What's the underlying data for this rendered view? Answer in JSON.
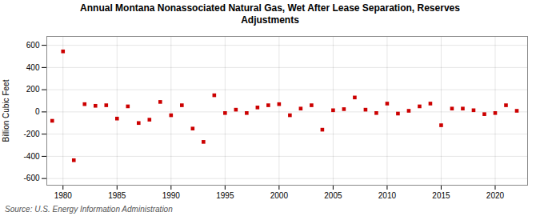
{
  "chart_data": {
    "type": "scatter",
    "title": "Annual Montana Nonassociated Natural Gas, Wet After Lease Separation, Reserves\nAdjustments",
    "ylabel": "Billion Cubic Feet",
    "source": "Source: U.S. Energy Information Administration",
    "x": [
      1979,
      1980,
      1981,
      1982,
      1983,
      1984,
      1985,
      1986,
      1987,
      1988,
      1989,
      1990,
      1991,
      1992,
      1993,
      1994,
      1995,
      1996,
      1997,
      1998,
      1999,
      2000,
      2001,
      2002,
      2003,
      2004,
      2005,
      2006,
      2007,
      2008,
      2009,
      2010,
      2011,
      2012,
      2013,
      2014,
      2015,
      2016,
      2017,
      2018,
      2019,
      2020,
      2021,
      2022
    ],
    "values": [
      -80,
      545,
      -435,
      70,
      55,
      60,
      -60,
      50,
      -100,
      -70,
      90,
      -30,
      60,
      -150,
      -270,
      150,
      -10,
      20,
      -10,
      40,
      60,
      70,
      -30,
      30,
      60,
      -160,
      15,
      25,
      130,
      20,
      -10,
      75,
      -15,
      10,
      50,
      75,
      -120,
      30,
      30,
      15,
      -20,
      -10,
      60,
      10
    ],
    "color": "#cc0000",
    "marker": "square",
    "xlim": [
      1978.5,
      2023
    ],
    "ylim": [
      -660,
      680
    ],
    "xticks": [
      1980,
      1985,
      1990,
      1995,
      2000,
      2005,
      2010,
      2015,
      2020
    ],
    "yticks": [
      -600,
      -400,
      -200,
      0,
      200,
      400,
      600
    ],
    "grid": true
  }
}
